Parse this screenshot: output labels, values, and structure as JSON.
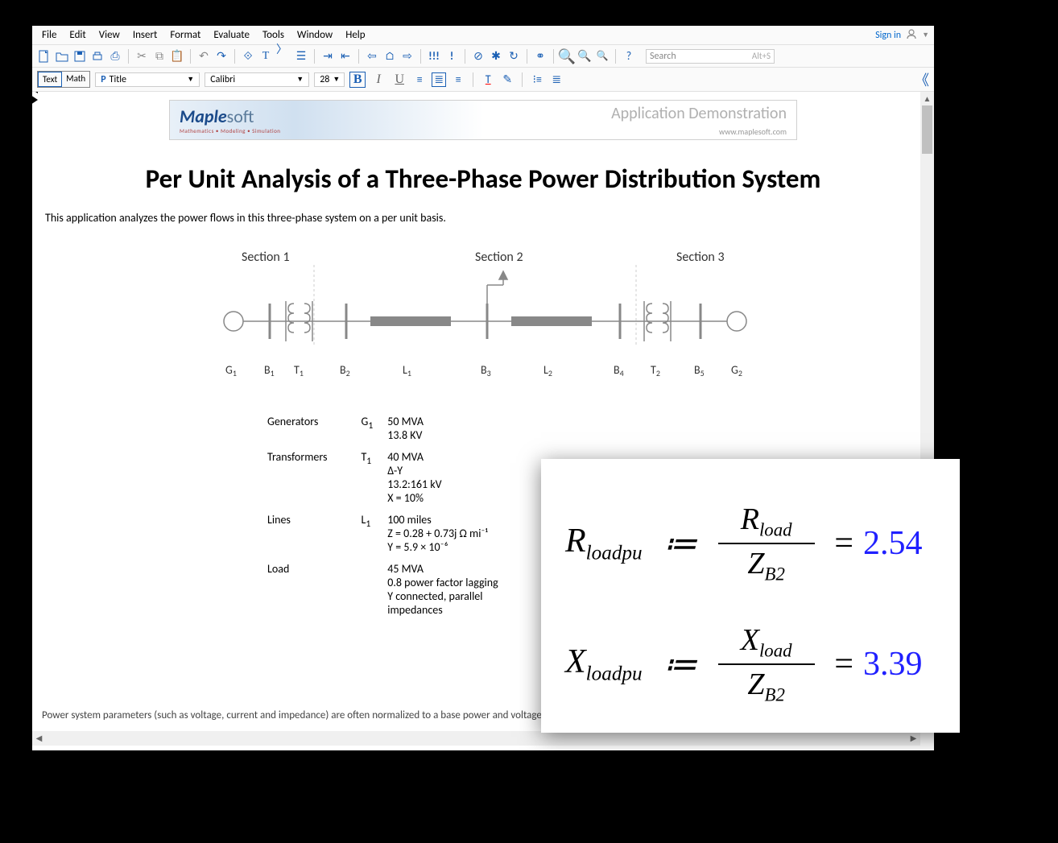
{
  "menu": {
    "items": [
      "File",
      "Edit",
      "View",
      "Insert",
      "Format",
      "Evaluate",
      "Tools",
      "Window",
      "Help"
    ],
    "signin": "Sign in"
  },
  "search": {
    "placeholder": "Search",
    "shortcut": "Alt+S"
  },
  "format": {
    "mode_text": "Text",
    "mode_math": "Math",
    "style": "Title",
    "font": "Calibri",
    "size": "28"
  },
  "banner": {
    "brand1": "Maple",
    "brand2": "soft",
    "tagline": "Mathematics • Modeling • Simulation",
    "demo": "Application Demonstration",
    "url": "www.maplesoft.com"
  },
  "doc": {
    "title": "Per Unit Analysis of a Three-Phase Power Distribution System",
    "intro": "This application analyzes the power flows in this three-phase system on a per unit basis.",
    "footer": "Power system parameters (such as voltage, current and impedance) are often normalized to a base power and voltage before an analysis. This simplifies the"
  },
  "diagram": {
    "sections": [
      "Section 1",
      "Section 2",
      "Section 3"
    ],
    "labels": [
      "G",
      "B",
      "T",
      "B",
      "L",
      "B",
      "L",
      "B",
      "T",
      "B",
      "G"
    ],
    "subs": [
      "1",
      "1",
      "1",
      "2",
      "1",
      "3",
      "2",
      "4",
      "2",
      "5",
      "2"
    ]
  },
  "specs": {
    "rows": [
      {
        "cat": "Generators",
        "sym": "G",
        "sub": "1",
        "lines": [
          "50 MVA",
          "13.8 KV"
        ]
      },
      {
        "cat": "Transformers",
        "sym": "T",
        "sub": "1",
        "lines": [
          "40 MVA",
          "Δ-Y",
          "13.2:161 kV",
          "X = 10%"
        ]
      },
      {
        "cat": "Lines",
        "sym": "L",
        "sub": "1",
        "lines": [
          "100 miles",
          "Z = 0.28 + 0.73j Ω mi⁻¹",
          "Y = 5.9 × 10⁻⁶"
        ]
      },
      {
        "cat": "Load",
        "sym": "",
        "sub": "",
        "lines": [
          "45 MVA",
          "0.8 power factor lagging",
          "Y connected, parallel",
          "impedances"
        ]
      }
    ]
  },
  "formulas": {
    "r": {
      "lhs_main": "R",
      "lhs_sub": "loadpu",
      "num_main": "R",
      "num_sub": "load",
      "den_main": "Z",
      "den_sub": "B2",
      "result": "2.54"
    },
    "x": {
      "lhs_main": "X",
      "lhs_sub": "loadpu",
      "num_main": "X",
      "num_sub": "load",
      "den_main": "Z",
      "den_sub": "B2",
      "result": "3.39"
    }
  },
  "colors": {
    "result_blue": "#2020ff",
    "icon_blue": "#1a5fb4",
    "diagram_gray": "#8a8a8a"
  }
}
